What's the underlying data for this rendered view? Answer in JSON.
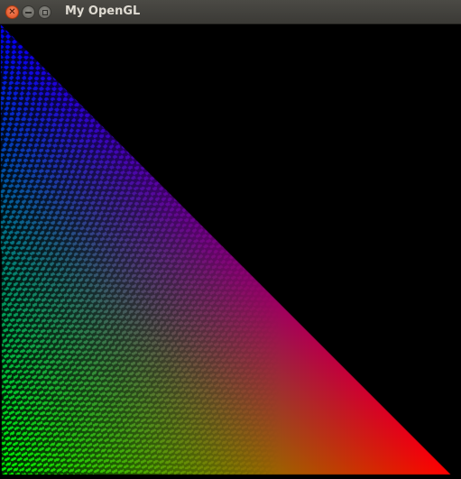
{
  "window": {
    "title": "My OpenGL",
    "controls": {
      "close_icon": "close-icon",
      "minimize_icon": "minimize-icon",
      "maximize_icon": "maximize-icon"
    }
  },
  "render": {
    "background_color": "#000000",
    "shape": "triangle",
    "vertex_colors": {
      "apex": "#0000ff",
      "bottom_left": "#00ff00",
      "bottom_right": "#ff0000"
    }
  }
}
